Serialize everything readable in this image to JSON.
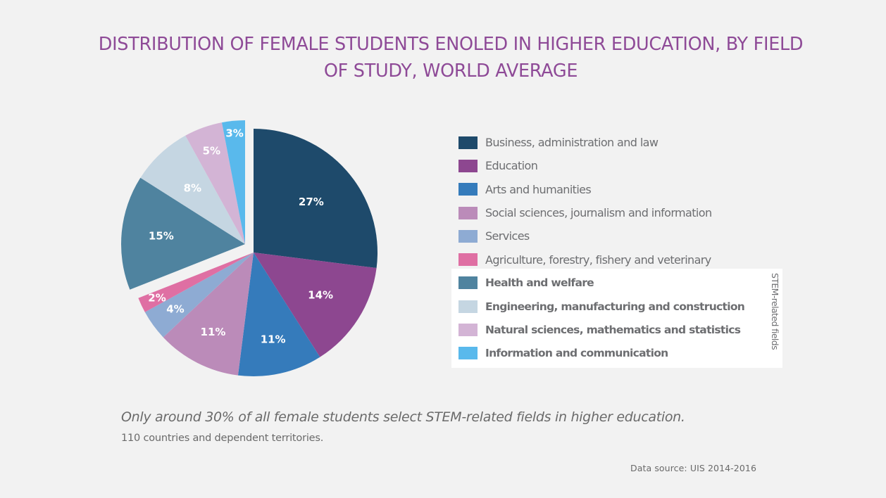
{
  "chart_data": {
    "type": "pie",
    "title": "DISTRIBUTION OF FEMALE STUDENTS ENOLED IN HIGHER EDUCATION, BY FIELD OF STUDY, WORLD AVERAGE",
    "unit": "%",
    "slices": [
      {
        "name": "Business, administration and law",
        "value": 27,
        "label": "27%",
        "color": "#1e4a6b",
        "stem": false
      },
      {
        "name": "Education",
        "value": 14,
        "label": "14%",
        "color": "#8d4790",
        "stem": false
      },
      {
        "name": "Arts and humanities",
        "value": 11,
        "label": "11%",
        "color": "#357bbb",
        "stem": false
      },
      {
        "name": "Social sciences, journalism and information",
        "value": 11,
        "label": "11%",
        "color": "#bb8bb9",
        "stem": false
      },
      {
        "name": "Services",
        "value": 4,
        "label": "4%",
        "color": "#8eabd3",
        "stem": false
      },
      {
        "name": "Agriculture, forestry, fishery and veterinary",
        "value": 2,
        "label": "2%",
        "color": "#df6fa3",
        "stem": false
      },
      {
        "name": "Health and welfare",
        "value": 15,
        "label": "15%",
        "color": "#4f839f",
        "stem": true
      },
      {
        "name": "Engineering, manufacturing and construction",
        "value": 8,
        "label": "8%",
        "color": "#c5d6e2",
        "stem": true
      },
      {
        "name": "Natural sciences, mathematics and statistics",
        "value": 5,
        "label": "5%",
        "color": "#d3b4d5",
        "stem": true
      },
      {
        "name": "Information and communication",
        "value": 3,
        "label": "3%",
        "color": "#59b9ec",
        "stem": true
      }
    ],
    "exploded_group": "STEM-related fields",
    "legend_position": "right"
  },
  "title_lines": [
    "DISTRIBUTION OF FEMALE STUDENTS ENOLED IN HIGHER EDUCATION, BY FIELD",
    "OF STUDY, WORLD AVERAGE"
  ],
  "stem_side_label": "STEM-related fields",
  "note": "Only around 30% of all female students select STEM-related fields in higher education.",
  "note2": "110 countries and dependent territories.",
  "source": "Data source: UIS 2014-2016"
}
